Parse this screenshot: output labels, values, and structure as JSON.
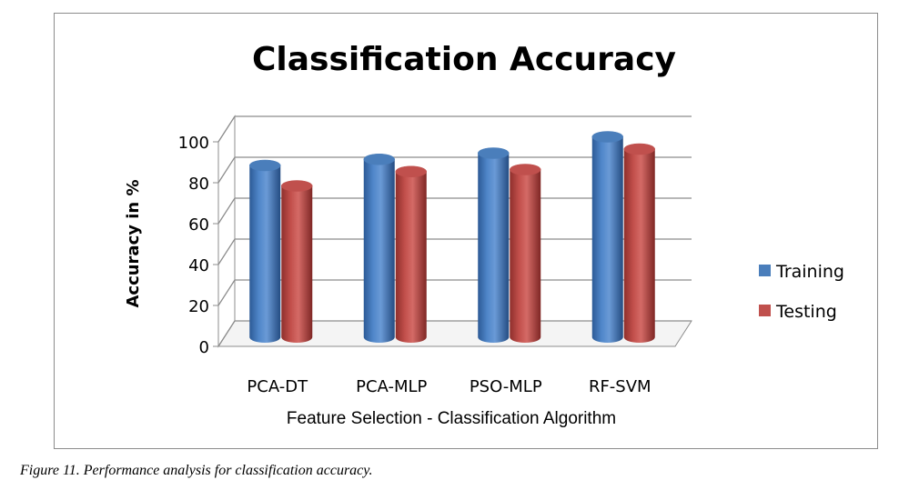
{
  "chart_data": {
    "type": "bar",
    "title": "Classification Accuracy",
    "xlabel": "Feature Selection - Classification Algorithm",
    "ylabel": "Accuracy in %",
    "categories": [
      "PCA-DT",
      "PCA-MLP",
      "PSO-MLP",
      "RF-SVM"
    ],
    "series": [
      {
        "name": "Training",
        "values": [
          84,
          87,
          90,
          98
        ],
        "color": "#4a7ebb"
      },
      {
        "name": "Testing",
        "values": [
          74,
          81,
          82,
          92
        ],
        "color": "#c0504d"
      }
    ],
    "ylim": [
      0,
      100
    ],
    "yticks": [
      "0",
      "20",
      "40",
      "60",
      "80",
      "100"
    ],
    "grid": true,
    "legend_position": "right",
    "style": "3d-cylinder"
  },
  "caption": "Figure 11. Performance analysis for classification accuracy."
}
